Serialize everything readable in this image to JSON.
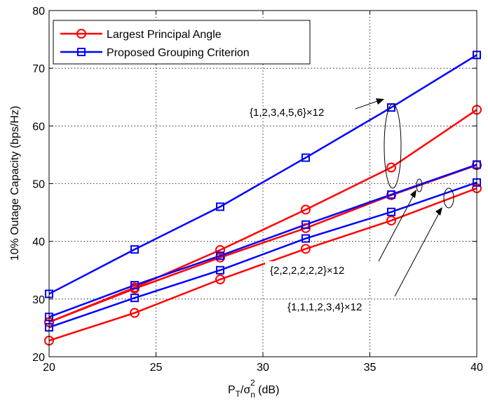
{
  "chart_data": {
    "type": "line",
    "xlabel": {
      "main": "P",
      "sub1": "T",
      "slash": "/σ",
      "sub2": "n",
      "sup": "2",
      "unit": " (dB)"
    },
    "ylabel": "10% Outage Capacity (bps/Hz)",
    "xlim": [
      20,
      40
    ],
    "ylim": [
      20,
      80
    ],
    "x_ticks": [
      20,
      25,
      30,
      35,
      40
    ],
    "y_ticks": [
      20,
      30,
      40,
      50,
      60,
      70,
      80
    ],
    "grid": true,
    "legend_position": "top-left",
    "x": [
      20,
      24,
      28,
      32,
      36,
      40
    ],
    "series": [
      {
        "name": "Largest Principal Angle",
        "color": "#ff0000",
        "marker": "circle",
        "show_in_legend": true,
        "values": [
          26.0,
          32.0,
          38.5,
          45.5,
          52.8,
          62.8
        ]
      },
      {
        "name": "Proposed Grouping Criterion",
        "color": "#0000ff",
        "marker": "square",
        "show_in_legend": true,
        "values": [
          30.9,
          38.6,
          46.0,
          54.5,
          63.2,
          72.3
        ]
      },
      {
        "name": "",
        "color": "#ff0000",
        "marker": "circle",
        "show_in_legend": false,
        "values": [
          26.0,
          31.8,
          37.2,
          42.3,
          48.0,
          53.2
        ]
      },
      {
        "name": "",
        "color": "#0000ff",
        "marker": "square",
        "show_in_legend": false,
        "values": [
          26.9,
          32.4,
          37.5,
          42.9,
          48.1,
          53.3
        ]
      },
      {
        "name": "",
        "color": "#ff0000",
        "marker": "circle",
        "show_in_legend": false,
        "values": [
          22.8,
          27.6,
          33.4,
          38.7,
          43.6,
          49.2
        ]
      },
      {
        "name": "",
        "color": "#0000ff",
        "marker": "square",
        "show_in_legend": false,
        "values": [
          25.1,
          30.2,
          35.0,
          40.5,
          45.1,
          50.2
        ]
      }
    ],
    "annotations": [
      {
        "text": "{1,2,3,4,5,6}×12"
      },
      {
        "text": "{2,2,2,2,2,2}×12"
      },
      {
        "text": "{1,1,1,2,3,4}×12"
      }
    ]
  }
}
